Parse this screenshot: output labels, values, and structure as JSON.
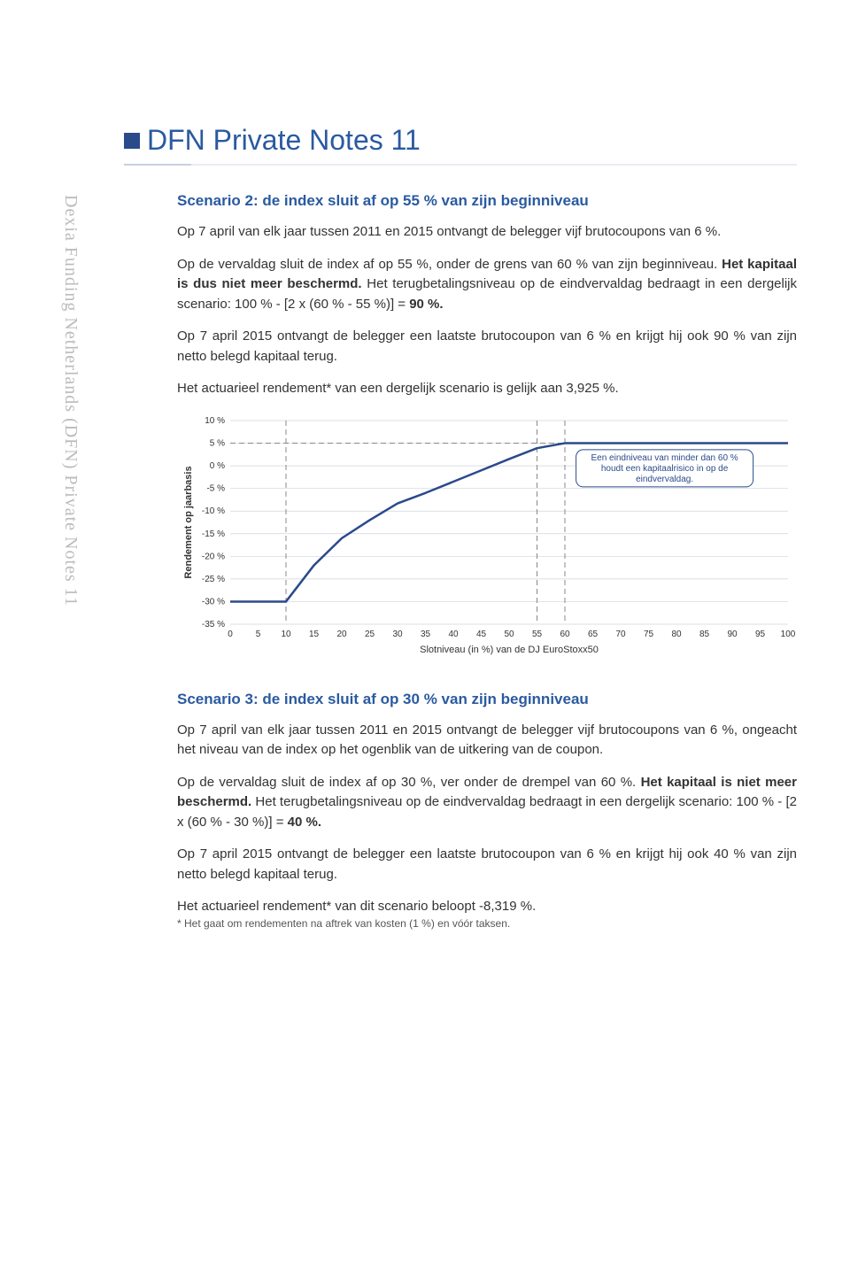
{
  "doc_title": "DFN Private Notes 11",
  "vertical_label": "Dexia Funding Netherlands (DFN) Private Notes 11",
  "scenario2": {
    "heading": "Scenario 2: de index sluit af op 55 % van zijn beginniveau",
    "p1": "Op 7 april van elk jaar tussen 2011 en 2015 ontvangt de belegger vijf brutocoupons van 6 %.",
    "p2a": "Op de vervaldag sluit de index af op 55 %, onder de grens van 60 % van zijn beginniveau. ",
    "p2b": "Het kapitaal is dus niet meer beschermd.",
    "p2c": " Het terugbetalingsniveau op de eindvervaldag bedraagt in een dergelijk scenario: 100 % - [2 x (60 % - 55 %)] = ",
    "p2d": "90 %.",
    "p3": "Op 7 april 2015 ontvangt de belegger een laatste brutocoupon van 6 % en krijgt hij ook 90 % van zijn netto belegd kapitaal terug.",
    "p4": "Het actuarieel rendement* van een dergelijk scenario is gelijk aan 3,925 %."
  },
  "scenario3": {
    "heading": "Scenario 3: de index sluit af op 30 % van zijn beginniveau",
    "p1": "Op 7 april van elk jaar tussen 2011 en 2015 ontvangt de belegger vijf brutocoupons van 6 %, ongeacht het niveau van de index op het ogenblik van de uitkering van de coupon.",
    "p2a": "Op de vervaldag sluit de index af op 30 %, ver onder de drempel van 60 %. ",
    "p2b": "Het kapitaal is niet meer beschermd.",
    "p2c": " Het terugbetalingsniveau op de eindvervaldag bedraagt in een dergelijk scenario: 100 % - [2 x (60 % - 30 %)] = ",
    "p2d": "40 %.",
    "p3": "Op 7 april 2015 ontvangt de belegger een laatste brutocoupon van 6 % en krijgt hij ook 40 % van zijn netto belegd kapitaal terug.",
    "p4": "Het actuarieel rendement* van dit scenario beloopt -8,319 %."
  },
  "footnote": "* Het gaat om rendementen na aftrek van kosten (1 %) en vóór taksen.",
  "chart": {
    "type": "line",
    "y_axis_title": "Rendement op jaarbasis",
    "x_axis_title": "Slotniveau (in %) van de DJ EuroStoxx50",
    "xlim": [
      0,
      100
    ],
    "ylim": [
      -35,
      10
    ],
    "xtick_step": 5,
    "ytick_step": 5,
    "y_ticks": [
      10,
      5,
      0,
      -5,
      -10,
      -15,
      -20,
      -25,
      -30,
      -35
    ],
    "y_tick_labels": [
      "10 %",
      "5 %",
      "0 %",
      "-5 %",
      "-10 %",
      "-15 %",
      "-20 %",
      "-25 %",
      "-30 %",
      "-35 %"
    ],
    "x_ticks": [
      0,
      5,
      10,
      15,
      20,
      25,
      30,
      35,
      40,
      45,
      50,
      55,
      60,
      65,
      70,
      75,
      80,
      85,
      90,
      95,
      100
    ],
    "dashed_vlines": [
      10,
      55,
      60
    ],
    "dashed_hline": 5,
    "line_color": "#2a4a8a",
    "line_width": 2.5,
    "grid_color": "#cfd4dc",
    "dashed_color": "#888888",
    "background_color": "#ffffff",
    "data_points": [
      {
        "x": 0,
        "y": -30
      },
      {
        "x": 10,
        "y": -30
      },
      {
        "x": 15,
        "y": -22
      },
      {
        "x": 20,
        "y": -16
      },
      {
        "x": 25,
        "y": -12
      },
      {
        "x": 30,
        "y": -8.3
      },
      {
        "x": 35,
        "y": -6
      },
      {
        "x": 40,
        "y": -3.5
      },
      {
        "x": 45,
        "y": -1
      },
      {
        "x": 50,
        "y": 1.5
      },
      {
        "x": 55,
        "y": 3.9
      },
      {
        "x": 60,
        "y": 5
      },
      {
        "x": 100,
        "y": 5
      }
    ],
    "annotation": {
      "line1": "Een eindniveau van minder dan 60 %",
      "line2": "houdt een kapitaalrisico in op de",
      "line3": "eindvervaldag."
    },
    "label_fontsize": 10,
    "title_fontsize": 11
  }
}
